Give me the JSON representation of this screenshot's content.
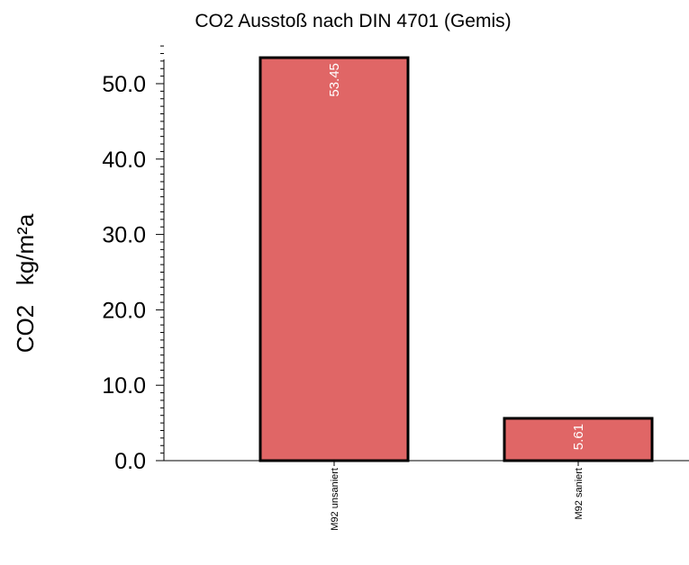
{
  "chart_data": {
    "type": "bar",
    "title": "CO2 Ausstoß nach DIN 4701 (Gemis)",
    "ylabel": "CO2   kg/m²a",
    "xlabel": "",
    "categories": [
      "M92 unsaniert",
      "M92 saniert"
    ],
    "values": [
      53.45,
      5.61
    ],
    "value_labels": [
      "53.45",
      "5.61"
    ],
    "ylim": [
      0,
      55
    ],
    "yticks": [
      0,
      10,
      20,
      30,
      40,
      50
    ],
    "ytick_labels": [
      "0.0",
      "10.0",
      "20.0",
      "30.0",
      "40.0",
      "50.0"
    ],
    "minor_tick_step": 1,
    "grid": false,
    "legend": "none",
    "colors": {
      "bar": "#e06666",
      "bar_border": "#000000",
      "value_label": "#ffffff",
      "axis": "#000000"
    }
  }
}
